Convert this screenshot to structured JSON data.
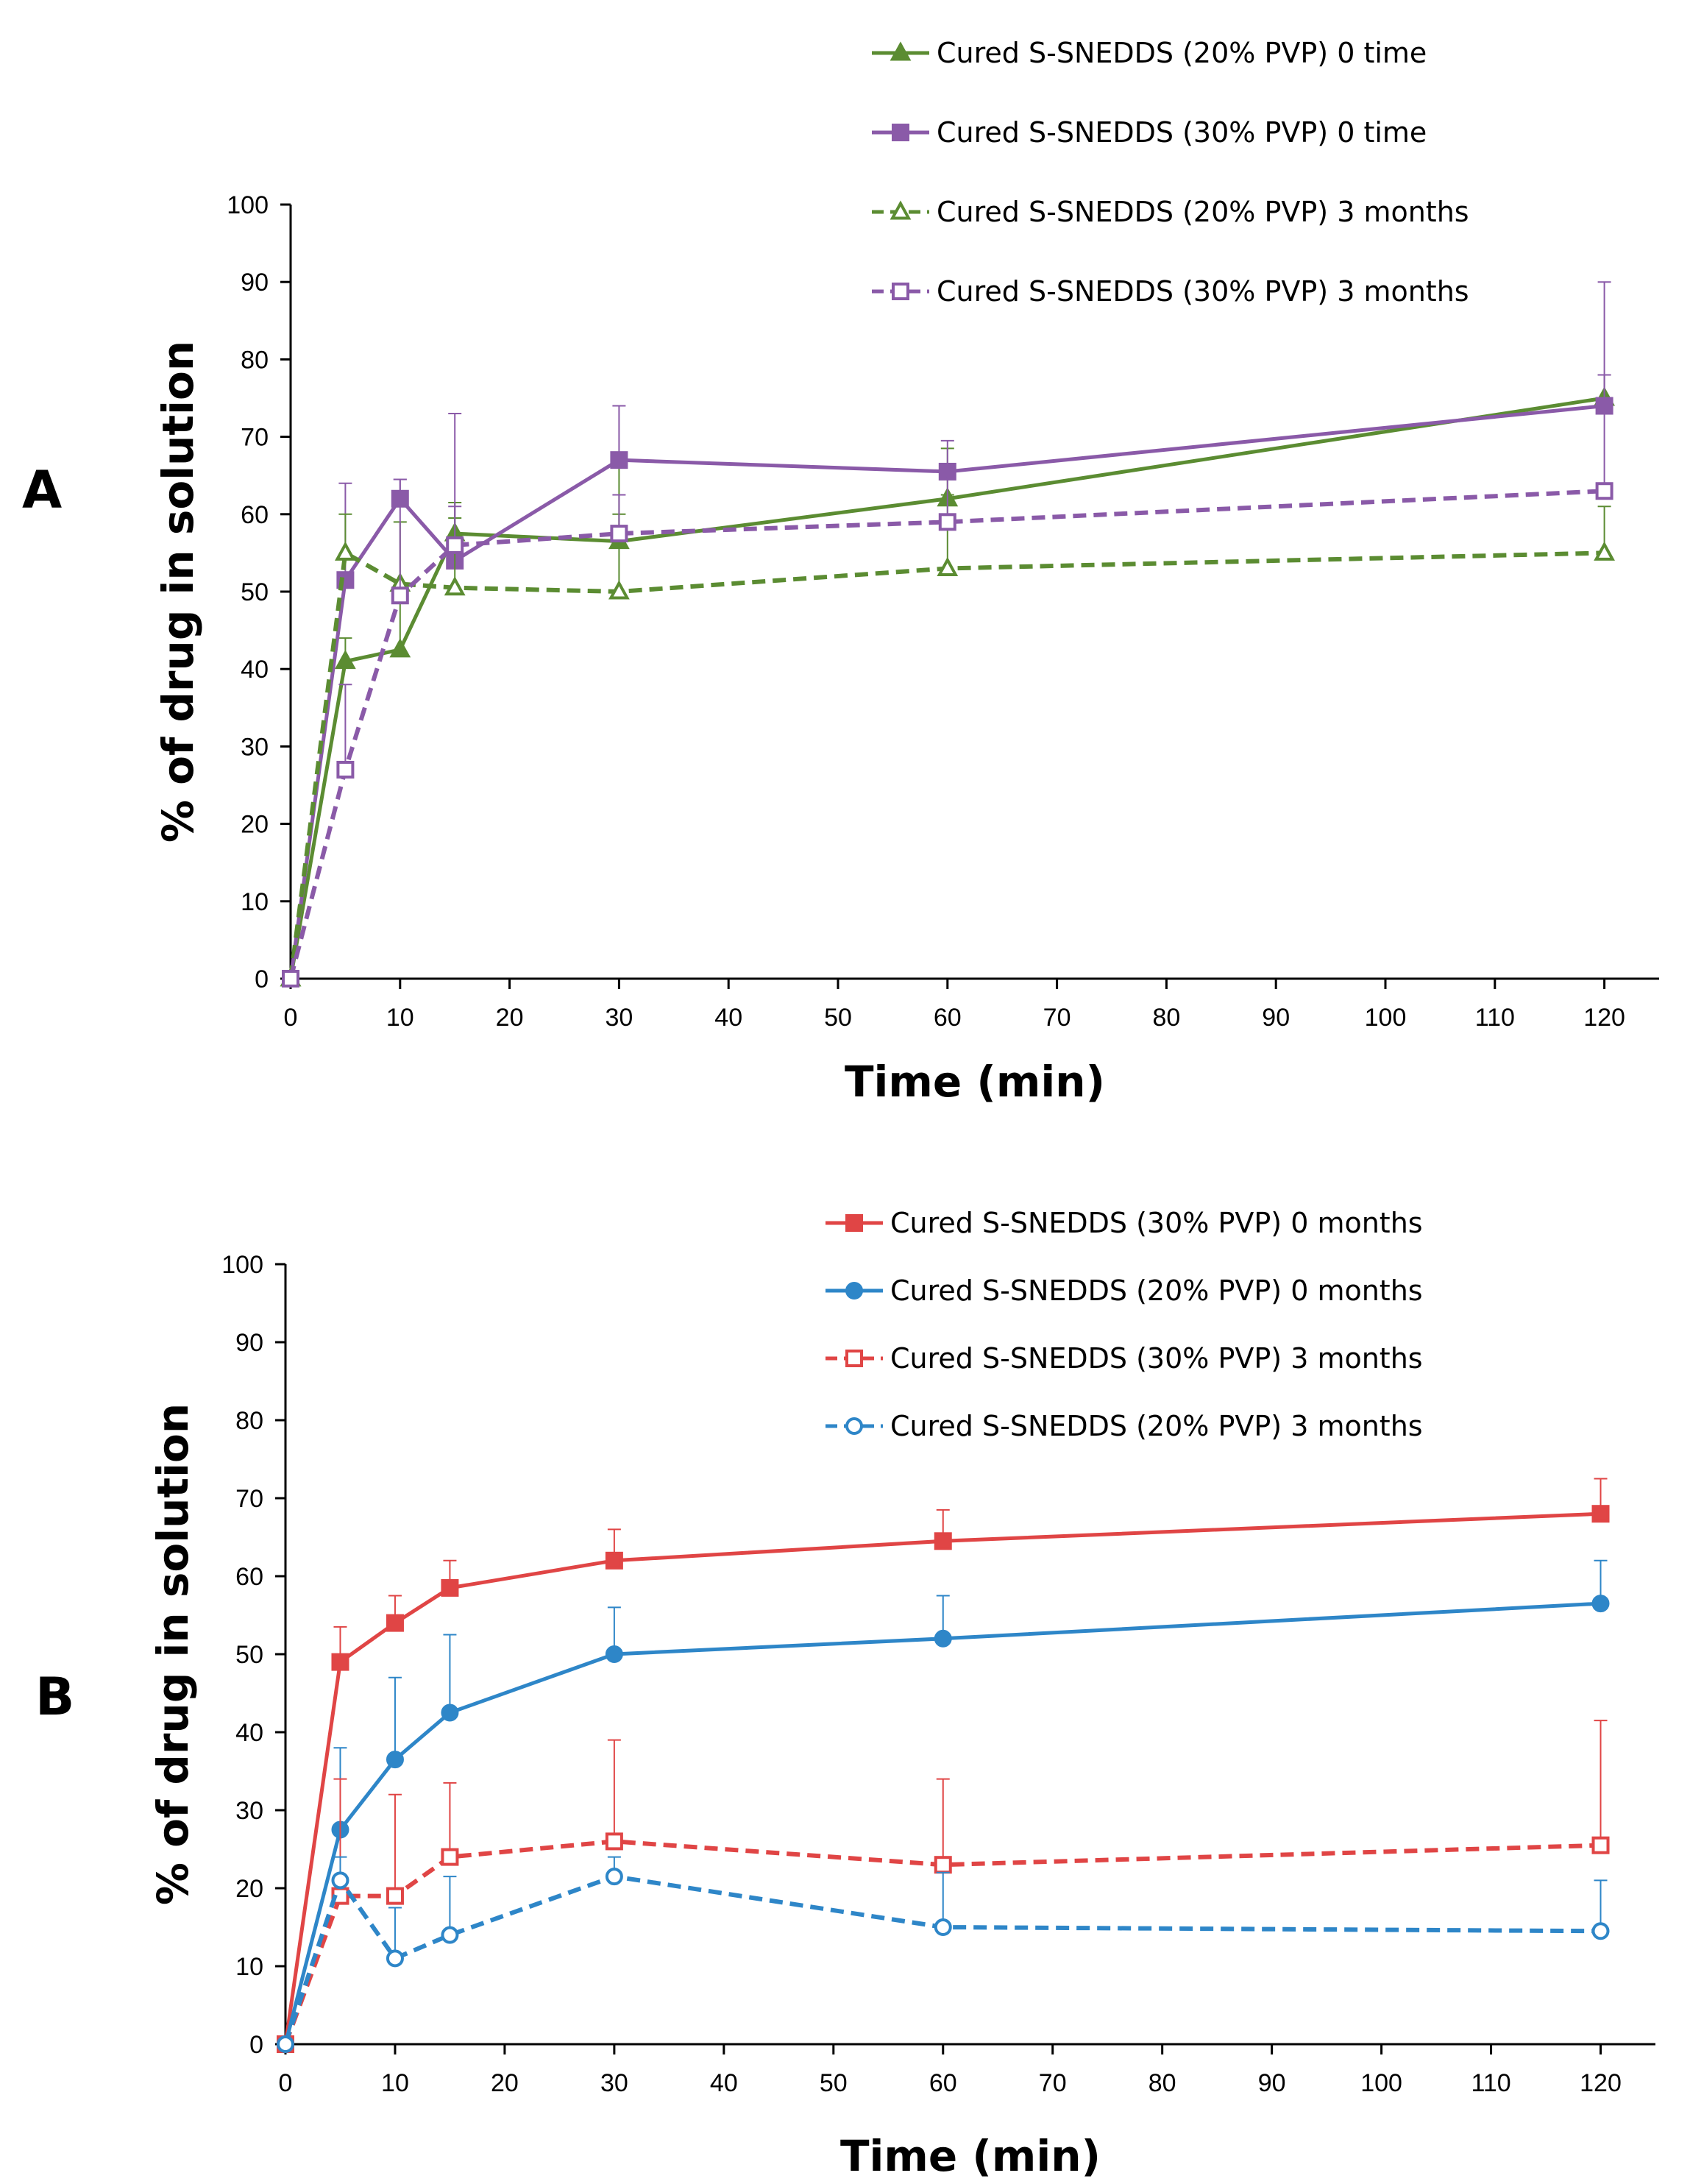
{
  "chart_data": [
    {
      "type": "line",
      "panel_label": "A",
      "xlabel": "Time (min)",
      "ylabel": "% of drug in solution",
      "xlim": [
        0,
        125
      ],
      "ylim": [
        0,
        100
      ],
      "xticks": [
        0,
        10,
        20,
        30,
        40,
        50,
        60,
        70,
        80,
        90,
        100,
        110,
        120
      ],
      "yticks": [
        0,
        10,
        20,
        30,
        40,
        50,
        60,
        70,
        80,
        90,
        100
      ],
      "x": [
        0,
        5,
        10,
        15,
        30,
        60,
        120
      ],
      "legend_position": "top-right",
      "series": [
        {
          "name": "Cured S-SNEDDS (20% PVP) 0 time",
          "color": "#5b8c32",
          "dashed": false,
          "marker": "triangle",
          "filled": true,
          "values": [
            0,
            41,
            42.5,
            57.5,
            56.5,
            62,
            75
          ],
          "errors": [
            0,
            3,
            8,
            4,
            10,
            6.5,
            3
          ]
        },
        {
          "name": "Cured S-SNEDDS (30% PVP) 0 time",
          "color": "#8a5aa8",
          "dashed": false,
          "marker": "square",
          "filled": true,
          "values": [
            0,
            51.5,
            62,
            54,
            67,
            65.5,
            74
          ],
          "errors": [
            0,
            12.5,
            2.5,
            19,
            7,
            4,
            16
          ]
        },
        {
          "name": "Cured S-SNEDDS (20% PVP) 3 months",
          "color": "#5b8c32",
          "dashed": true,
          "marker": "triangle",
          "filled": false,
          "values": [
            0,
            55,
            51,
            50.5,
            50,
            53,
            55
          ],
          "errors": [
            0,
            5,
            8,
            9,
            10,
            9.5,
            6
          ]
        },
        {
          "name": "Cured S-SNEDDS (30% PVP) 3 months",
          "color": "#8a5aa8",
          "dashed": true,
          "marker": "square",
          "filled": false,
          "values": [
            0,
            27,
            49.5,
            56,
            57.5,
            59,
            63
          ],
          "errors": [
            0,
            11,
            15,
            5,
            5,
            6,
            15
          ]
        }
      ]
    },
    {
      "type": "line",
      "panel_label": "B",
      "xlabel": "Time (min)",
      "ylabel": "% of drug in solution",
      "xlim": [
        0,
        125
      ],
      "ylim": [
        0,
        100
      ],
      "xticks": [
        0,
        10,
        20,
        30,
        40,
        50,
        60,
        70,
        80,
        90,
        100,
        110,
        120
      ],
      "yticks": [
        0,
        10,
        20,
        30,
        40,
        50,
        60,
        70,
        80,
        90,
        100
      ],
      "x": [
        0,
        5,
        10,
        15,
        30,
        60,
        120
      ],
      "legend_position": "top-right",
      "series": [
        {
          "name": "Cured S-SNEDDS (30% PVP) 0 months",
          "color": "#e04545",
          "dashed": false,
          "marker": "square",
          "filled": true,
          "values": [
            0,
            49,
            54,
            58.5,
            62,
            64.5,
            68
          ],
          "errors": [
            0,
            4.5,
            3.5,
            3.5,
            4,
            4,
            4.5
          ]
        },
        {
          "name": "Cured S-SNEDDS (20% PVP) 0 months",
          "color": "#2e86c8",
          "dashed": false,
          "marker": "circle",
          "filled": true,
          "values": [
            0,
            27.5,
            36.5,
            42.5,
            50,
            52,
            56.5
          ],
          "errors": [
            0,
            10.5,
            10.5,
            10,
            6,
            5.5,
            5.5
          ]
        },
        {
          "name": "Cured S-SNEDDS (30% PVP) 3 months",
          "color": "#e04545",
          "dashed": true,
          "marker": "square",
          "filled": false,
          "values": [
            0,
            19,
            19,
            24,
            26,
            23,
            25.5
          ],
          "errors": [
            0,
            15,
            13,
            9.5,
            13,
            11,
            16
          ]
        },
        {
          "name": "Cured S-SNEDDS (20% PVP) 3 months",
          "color": "#2e86c8",
          "dashed": true,
          "marker": "circle",
          "filled": false,
          "values": [
            0,
            21,
            11,
            14,
            21.5,
            15,
            14.5
          ],
          "errors": [
            0,
            3,
            6.5,
            7.5,
            2.5,
            7,
            6.5
          ]
        }
      ]
    }
  ]
}
